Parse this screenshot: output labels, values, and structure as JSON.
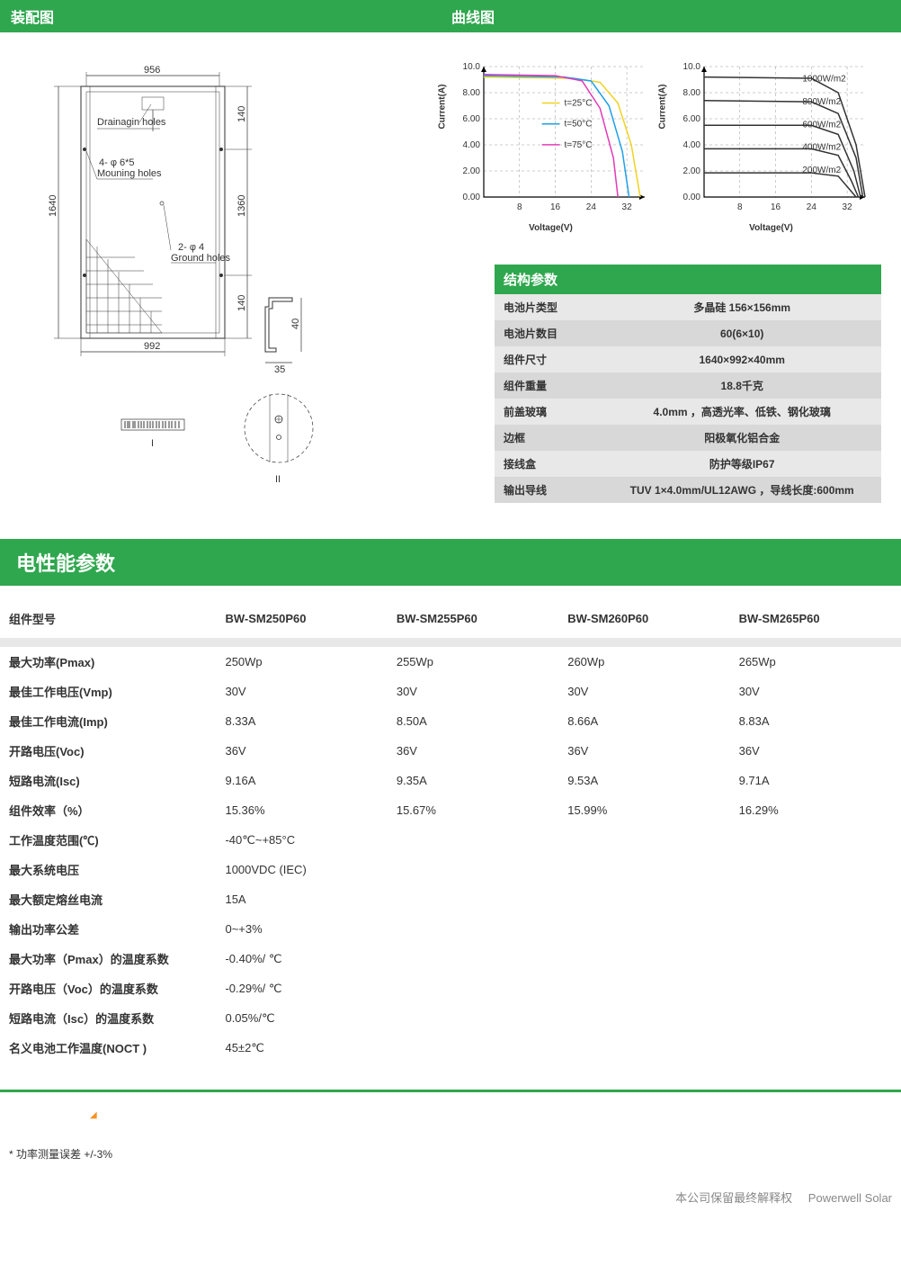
{
  "headers": {
    "assembly": "装配图",
    "curve": "曲线图",
    "elec": "电性能参数"
  },
  "assembly": {
    "top_dim": "956",
    "bottom_dim": "992",
    "left_dim": "1640",
    "right_top": "140",
    "right_mid": "1360",
    "right_bot": "140",
    "drain_label": "Drainagin holes",
    "mount_label_top": "4- φ 6*5",
    "mount_label_bot": "Mouning holes",
    "ground_label_top": "2- φ 4",
    "ground_label_bot": "Ground holes",
    "profile_w": "35",
    "profile_h": "40",
    "section1": "I",
    "section2": "II"
  },
  "charts": {
    "y_label": "Current(A)",
    "x_label": "Voltage(V)",
    "y_ticks": [
      "0.00",
      "2.00",
      "4.00",
      "6.00",
      "8.00",
      "10.0"
    ],
    "x_ticks": [
      "8",
      "16",
      "24",
      "32"
    ],
    "ylim": [
      0,
      10
    ],
    "xlim": [
      0,
      36
    ],
    "grid_color": "#999999",
    "left": {
      "series": [
        {
          "label": "t=25°C",
          "color": "#f2d21f",
          "pts": [
            [
              0,
              9.2
            ],
            [
              20,
              9.1
            ],
            [
              26,
              8.8
            ],
            [
              30,
              7.2
            ],
            [
              33,
              4.0
            ],
            [
              35,
              0
            ]
          ]
        },
        {
          "label": "t=50°C",
          "color": "#1ea0e6",
          "pts": [
            [
              0,
              9.3
            ],
            [
              18,
              9.2
            ],
            [
              24,
              8.9
            ],
            [
              28,
              7.0
            ],
            [
              31,
              3.5
            ],
            [
              32.5,
              0
            ]
          ]
        },
        {
          "label": "t=75°C",
          "color": "#e33bb7",
          "pts": [
            [
              0,
              9.4
            ],
            [
              16,
              9.3
            ],
            [
              22,
              8.9
            ],
            [
              26,
              6.8
            ],
            [
              29,
              3.0
            ],
            [
              30,
              0
            ]
          ]
        }
      ]
    },
    "right": {
      "series": [
        {
          "label": "1000W/m2",
          "color": "#333333",
          "pts": [
            [
              0,
              9.2
            ],
            [
              24,
              9.1
            ],
            [
              30,
              8.0
            ],
            [
              34,
              4.0
            ],
            [
              36,
              0
            ]
          ]
        },
        {
          "label": "800W/m2",
          "color": "#333333",
          "pts": [
            [
              0,
              7.4
            ],
            [
              24,
              7.3
            ],
            [
              30,
              6.4
            ],
            [
              34,
              3.0
            ],
            [
              35.5,
              0
            ]
          ]
        },
        {
          "label": "600W/m2",
          "color": "#333333",
          "pts": [
            [
              0,
              5.5
            ],
            [
              24,
              5.5
            ],
            [
              30,
              4.8
            ],
            [
              33.5,
              2.0
            ],
            [
              35,
              0
            ]
          ]
        },
        {
          "label": "400W/m2",
          "color": "#333333",
          "pts": [
            [
              0,
              3.7
            ],
            [
              24,
              3.7
            ],
            [
              30,
              3.2
            ],
            [
              33,
              1.2
            ],
            [
              34.5,
              0
            ]
          ]
        },
        {
          "label": "200W/m2",
          "color": "#333333",
          "pts": [
            [
              0,
              1.85
            ],
            [
              24,
              1.85
            ],
            [
              30,
              1.6
            ],
            [
              32.5,
              0.6
            ],
            [
              34,
              0
            ]
          ]
        }
      ]
    }
  },
  "struct": {
    "title": "结构参数",
    "rows": [
      [
        "电池片类型",
        "多晶硅 156×156mm"
      ],
      [
        "电池片数目",
        "60(6×10)"
      ],
      [
        "组件尺寸",
        "1640×992×40mm"
      ],
      [
        "组件重量",
        "18.8千克"
      ],
      [
        "前盖玻璃",
        "4.0mm ，高透光率、低铁、钢化玻璃"
      ],
      [
        "边框",
        "阳极氧化铝合金"
      ],
      [
        "接线盒",
        "防护等级IP67"
      ],
      [
        "输出导线",
        "TUV 1×4.0mm/UL12AWG ，导线长度:600mm"
      ]
    ]
  },
  "elec": {
    "model_label": "组件型号",
    "models": [
      "BW-SM250P60",
      "BW-SM255P60",
      "BW-SM260P60",
      "BW-SM265P60"
    ],
    "rows4": [
      {
        "label": "最大功率(Pmax)",
        "vals": [
          "250Wp",
          "255Wp",
          "260Wp",
          "265Wp"
        ]
      },
      {
        "label": "最佳工作电压(Vmp)",
        "vals": [
          "30V",
          "30V",
          "30V",
          "30V"
        ]
      },
      {
        "label": "最佳工作电流(Imp)",
        "vals": [
          "8.33A",
          "8.50A",
          "8.66A",
          "8.83A"
        ]
      },
      {
        "label": "开路电压(Voc)",
        "vals": [
          "36V",
          "36V",
          "36V",
          "36V"
        ]
      },
      {
        "label": "短路电流(Isc)",
        "vals": [
          "9.16A",
          "9.35A",
          "9.53A",
          "9.71A"
        ]
      },
      {
        "label": "组件效率（%）",
        "vals": [
          "15.36%",
          "15.67%",
          "15.99%",
          "16.29%"
        ]
      }
    ],
    "rows1": [
      {
        "label": "工作温度范围(℃)",
        "val": "-40℃~+85°C"
      },
      {
        "label": "最大系统电压",
        "val": "1000VDC (IEC)"
      },
      {
        "label": "最大额定熔丝电流",
        "val": "15A"
      },
      {
        "label": "输出功率公差",
        "val": "0~+3%"
      },
      {
        "label": "最大功率（Pmax）的温度系数",
        "val": "-0.40%/ ℃"
      },
      {
        "label": "开路电压（Voc）的温度系数",
        "val": "-0.29%/ ℃"
      },
      {
        "label": "短路电流（Isc）的温度系数",
        "val": "0.05%/℃"
      },
      {
        "label": "名义电池工作温度(NOCT )",
        "val": "45±2℃"
      }
    ]
  },
  "footer": {
    "note": "*  功率测量误差  +/-3%",
    "rights": "本公司保留最终解释权",
    "brand": "Powerwell Solar"
  }
}
